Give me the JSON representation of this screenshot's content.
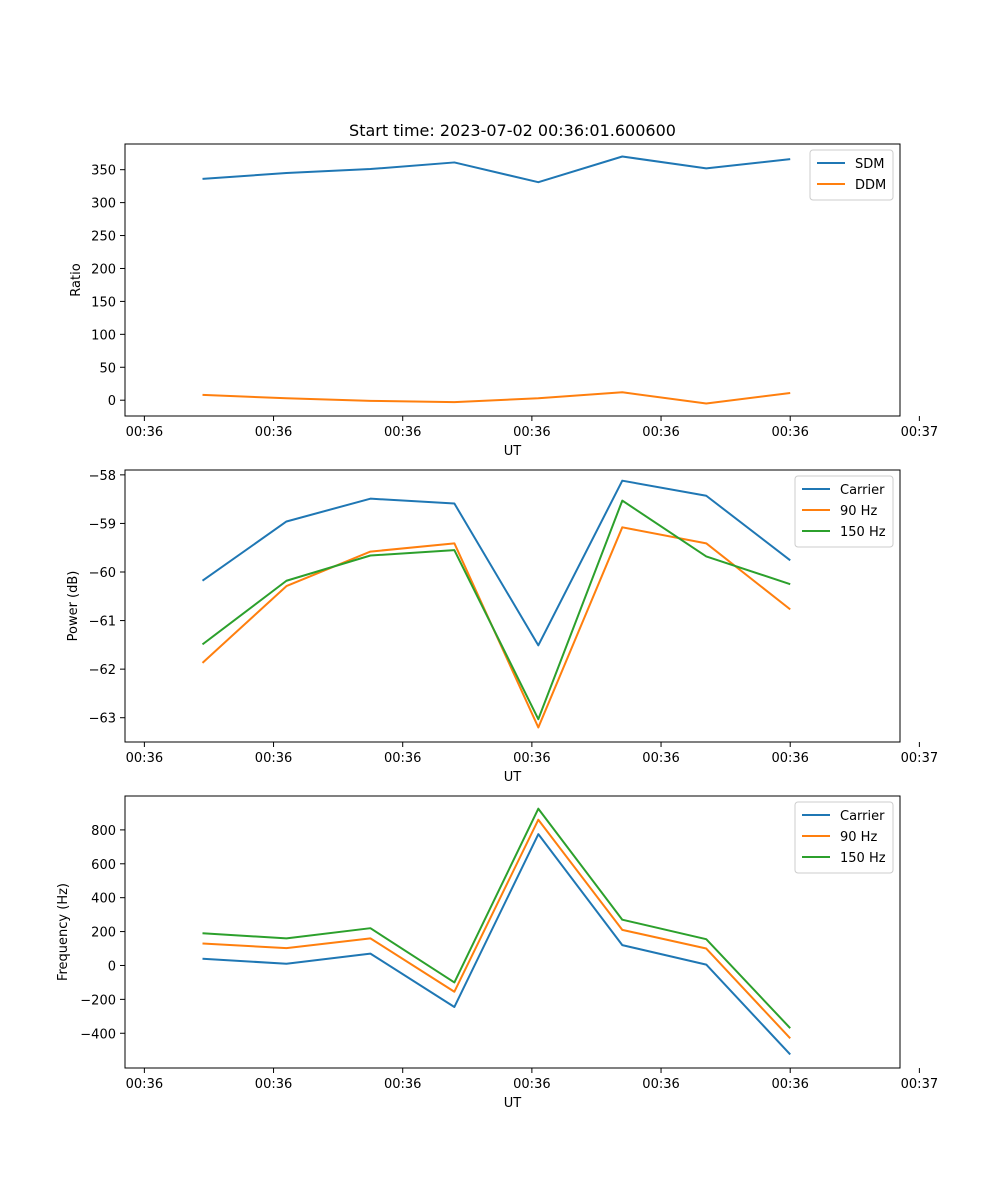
{
  "chart_data": [
    {
      "type": "line",
      "title": "Start time: 2023-07-02 00:36:01.600600",
      "xlabel": "UT",
      "ylabel": "Ratio",
      "x": [
        "00:36:02.2",
        "00:36:02.85",
        "00:36:03.5",
        "00:36:04.15",
        "00:36:04.8",
        "00:36:05.45",
        "00:36:06.1",
        "00:36:06.75"
      ],
      "xlim": [
        "00:36:01.6",
        "00:36:07.6"
      ],
      "xtick_values": [
        "00:36:01.75",
        "00:36:02.75",
        "00:36:03.75",
        "00:36:04.75",
        "00:36:05.75",
        "00:36:06.75",
        "00:36:07.75"
      ],
      "xtick_labels": [
        "00:36",
        "00:36",
        "00:36",
        "00:36",
        "00:36",
        "00:36",
        "00:37"
      ],
      "ylim": [
        -24,
        389
      ],
      "yticks": [
        0,
        50,
        100,
        150,
        200,
        250,
        300,
        350
      ],
      "legend": "top-right",
      "series": [
        {
          "name": "SDM",
          "color": "#1f77b4",
          "values": [
            336,
            345,
            351,
            361,
            331,
            370,
            352,
            366
          ]
        },
        {
          "name": "DDM",
          "color": "#ff7f0e",
          "values": [
            8,
            3,
            -1,
            -3,
            3,
            12,
            -5,
            11
          ]
        }
      ]
    },
    {
      "type": "line",
      "xlabel": "UT",
      "ylabel": "Power (dB)",
      "x": [
        "00:36:02.2",
        "00:36:02.85",
        "00:36:03.5",
        "00:36:04.15",
        "00:36:04.8",
        "00:36:05.45",
        "00:36:06.1",
        "00:36:06.75"
      ],
      "xlim": [
        "00:36:01.6",
        "00:36:07.6"
      ],
      "xtick_values": [
        "00:36:01.75",
        "00:36:02.75",
        "00:36:03.75",
        "00:36:04.75",
        "00:36:05.75",
        "00:36:06.75",
        "00:36:07.75"
      ],
      "xtick_labels": [
        "00:36",
        "00:36",
        "00:36",
        "00:36",
        "00:36",
        "00:36",
        "00:37"
      ],
      "ylim": [
        -63.5,
        -57.9
      ],
      "yticks": [
        -63,
        -62,
        -61,
        -60,
        -59,
        -58
      ],
      "legend": "top-right",
      "series": [
        {
          "name": "Carrier",
          "color": "#1f77b4",
          "values": [
            -60.18,
            -58.96,
            -58.49,
            -58.59,
            -61.51,
            -58.12,
            -58.43,
            -59.76
          ]
        },
        {
          "name": "90 Hz",
          "color": "#ff7f0e",
          "values": [
            -61.87,
            -60.29,
            -59.58,
            -59.41,
            -63.2,
            -59.08,
            -59.41,
            -60.77
          ]
        },
        {
          "name": "150 Hz",
          "color": "#2ca02c",
          "values": [
            -61.49,
            -60.18,
            -59.66,
            -59.55,
            -63.03,
            -58.53,
            -59.68,
            -60.25
          ]
        }
      ]
    },
    {
      "type": "line",
      "xlabel": "UT",
      "ylabel": "Frequency (Hz)",
      "x": [
        "00:36:02.2",
        "00:36:02.85",
        "00:36:03.5",
        "00:36:04.15",
        "00:36:04.8",
        "00:36:05.45",
        "00:36:06.1",
        "00:36:06.75"
      ],
      "xlim": [
        "00:36:01.6",
        "00:36:07.6"
      ],
      "xtick_values": [
        "00:36:01.75",
        "00:36:02.75",
        "00:36:03.75",
        "00:36:04.75",
        "00:36:05.75",
        "00:36:06.75",
        "00:36:07.75"
      ],
      "xtick_labels": [
        "00:36",
        "00:36",
        "00:36",
        "00:36",
        "00:36",
        "00:36",
        "00:37"
      ],
      "ylim": [
        -605,
        1000
      ],
      "yticks": [
        -400,
        -200,
        0,
        200,
        400,
        600,
        800
      ],
      "legend": "top-right",
      "series": [
        {
          "name": "Carrier",
          "color": "#1f77b4",
          "values": [
            40,
            10,
            70,
            -245,
            775,
            120,
            5,
            -525
          ]
        },
        {
          "name": "90 Hz",
          "color": "#ff7f0e",
          "values": [
            130,
            102,
            160,
            -155,
            860,
            210,
            100,
            -430
          ]
        },
        {
          "name": "150 Hz",
          "color": "#2ca02c",
          "values": [
            190,
            160,
            220,
            -100,
            925,
            270,
            155,
            -370
          ]
        }
      ]
    }
  ]
}
